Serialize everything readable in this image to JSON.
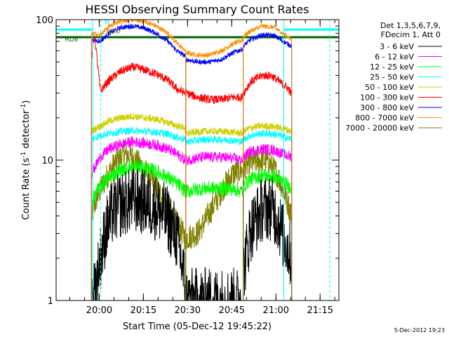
{
  "chart_data": {
    "type": "line",
    "title": "HESSI Observing Summary Count Rates",
    "xlabel": "Start Time (05-Dec-12 19:45:22)",
    "ylabel_main": "Count Rate (s",
    "ylabel_sup1": "-1",
    "ylabel_mid": " detector",
    "ylabel_sup2": "-1",
    "ylabel_end": ")",
    "x_unit": "minutes after 19:45:22",
    "xlim": [
      0,
      96
    ],
    "ylim": [
      1,
      100
    ],
    "yscale": "log",
    "xticks": [
      {
        "x": 14.63,
        "label": "20:00"
      },
      {
        "x": 29.63,
        "label": "20:15"
      },
      {
        "x": 44.63,
        "label": "20:30"
      },
      {
        "x": 59.63,
        "label": "20:45"
      },
      {
        "x": 74.63,
        "label": "21:00"
      },
      {
        "x": 89.63,
        "label": "21:15"
      }
    ],
    "yticks": [
      {
        "y": 1,
        "label": "1"
      },
      {
        "y": 10,
        "label": "10"
      },
      {
        "y": 100,
        "label": "100"
      }
    ],
    "legend_header": [
      "Det 1,3,5,6,7,9,",
      "FDecim 1, Att 0"
    ],
    "timestamp": "5-Dec-2012 19:23",
    "segments": [
      [
        12.0,
        44.0
      ],
      [
        44.0,
        63.5
      ],
      [
        63.5,
        80.0
      ]
    ],
    "data_range": [
      12.0,
      80.0
    ],
    "series": [
      {
        "name": "3 - 6 keV",
        "color": "#000000",
        "noise": 0.55,
        "points": [
          [
            12.0,
            1
          ],
          [
            13.5,
            1.3
          ],
          [
            15,
            2.0
          ],
          [
            17,
            3.2
          ],
          [
            19,
            4.2
          ],
          [
            22,
            4.8
          ],
          [
            26,
            5.2
          ],
          [
            30,
            5.0
          ],
          [
            34,
            4.6
          ],
          [
            38,
            3.8
          ],
          [
            41,
            2.8
          ],
          [
            43.9,
            1.3
          ],
          [
            44.1,
            1
          ],
          [
            50,
            1
          ],
          [
            56,
            1
          ],
          [
            60,
            1
          ],
          [
            63.4,
            1
          ],
          [
            63.6,
            1.6
          ],
          [
            66,
            3.2
          ],
          [
            70,
            4.5
          ],
          [
            73,
            4.6
          ],
          [
            75,
            4.0
          ],
          [
            77,
            2.9
          ],
          [
            80,
            2.0
          ]
        ]
      },
      {
        "name": "6 - 12 keV",
        "color": "#ff00ff",
        "noise": 0.09,
        "points": [
          [
            12.0,
            8.0
          ],
          [
            15,
            10.5
          ],
          [
            18,
            12.0
          ],
          [
            22,
            13.0
          ],
          [
            26,
            13.5
          ],
          [
            30,
            13.2
          ],
          [
            34,
            12.8
          ],
          [
            38,
            12.0
          ],
          [
            41,
            11.0
          ],
          [
            43.9,
            10.0
          ],
          [
            44.1,
            10.0
          ],
          [
            50,
            10.5
          ],
          [
            56,
            10.5
          ],
          [
            60,
            10.3
          ],
          [
            63.4,
            10.0
          ],
          [
            63.6,
            10.5
          ],
          [
            66,
            11.5
          ],
          [
            70,
            12.0
          ],
          [
            74,
            11.8
          ],
          [
            77,
            11.0
          ],
          [
            80,
            10.5
          ]
        ]
      },
      {
        "name": "12 - 25 keV",
        "color": "#00ff00",
        "noise": 0.12,
        "points": [
          [
            12.0,
            5.0
          ],
          [
            15,
            6.5
          ],
          [
            18,
            7.5
          ],
          [
            22,
            8.5
          ],
          [
            26,
            9.0
          ],
          [
            30,
            8.8
          ],
          [
            34,
            8.3
          ],
          [
            38,
            7.5
          ],
          [
            41,
            6.8
          ],
          [
            43.9,
            6.0
          ],
          [
            44.1,
            6.0
          ],
          [
            50,
            6.3
          ],
          [
            56,
            6.3
          ],
          [
            60,
            6.2
          ],
          [
            63.4,
            6.0
          ],
          [
            63.6,
            6.5
          ],
          [
            66,
            7.3
          ],
          [
            70,
            7.8
          ],
          [
            74,
            7.6
          ],
          [
            77,
            7.0
          ],
          [
            80,
            6.3
          ]
        ]
      },
      {
        "name": "25 - 50 keV",
        "color": "#00ffff",
        "noise": 0.06,
        "points": [
          [
            12.0,
            14.0
          ],
          [
            15,
            15.0
          ],
          [
            18,
            15.5
          ],
          [
            22,
            16.0
          ],
          [
            26,
            16.2
          ],
          [
            30,
            16.0
          ],
          [
            34,
            15.8
          ],
          [
            38,
            15.3
          ],
          [
            41,
            14.5
          ],
          [
            43.9,
            14.0
          ],
          [
            44.1,
            13.5
          ],
          [
            50,
            14.0
          ],
          [
            56,
            14.0
          ],
          [
            60,
            13.8
          ],
          [
            63.4,
            13.5
          ],
          [
            63.6,
            14.0
          ],
          [
            66,
            15.0
          ],
          [
            70,
            15.5
          ],
          [
            74,
            15.3
          ],
          [
            77,
            14.8
          ],
          [
            80,
            14.0
          ]
        ]
      },
      {
        "name": "50 - 100 keV",
        "color": "#d0d000",
        "noise": 0.06,
        "points": [
          [
            12.0,
            16.0
          ],
          [
            15,
            17.5
          ],
          [
            18,
            19.0
          ],
          [
            22,
            20.0
          ],
          [
            26,
            20.5
          ],
          [
            30,
            20.0
          ],
          [
            34,
            19.5
          ],
          [
            38,
            18.5
          ],
          [
            41,
            17.5
          ],
          [
            43.9,
            17.0
          ],
          [
            44.1,
            15.5
          ],
          [
            50,
            16.0
          ],
          [
            56,
            16.0
          ],
          [
            60,
            15.8
          ],
          [
            63.4,
            15.5
          ],
          [
            63.6,
            16.0
          ],
          [
            66,
            17.0
          ],
          [
            70,
            17.5
          ],
          [
            74,
            17.3
          ],
          [
            77,
            16.8
          ],
          [
            80,
            16.0
          ]
        ]
      },
      {
        "name": "100 - 300 keV",
        "color": "#ff0000",
        "noise": 0.07,
        "points": [
          [
            12.0,
            50
          ],
          [
            13,
            80
          ],
          [
            15,
            31
          ],
          [
            18,
            37
          ],
          [
            22,
            43
          ],
          [
            26,
            46
          ],
          [
            30,
            44
          ],
          [
            34,
            41
          ],
          [
            38,
            37
          ],
          [
            41,
            32
          ],
          [
            43.9,
            30
          ],
          [
            44.1,
            30
          ],
          [
            48,
            28
          ],
          [
            52,
            27
          ],
          [
            56,
            27
          ],
          [
            60,
            28
          ],
          [
            63.4,
            28
          ],
          [
            63.6,
            30
          ],
          [
            66,
            36
          ],
          [
            70,
            40
          ],
          [
            73,
            40
          ],
          [
            76,
            36
          ],
          [
            79,
            32
          ],
          [
            80,
            29
          ]
        ]
      },
      {
        "name": "300 - 800 keV",
        "color": "#0000ff",
        "noise": 0.04,
        "points": [
          [
            12.0,
            72
          ],
          [
            15,
            70
          ],
          [
            18,
            80
          ],
          [
            22,
            88
          ],
          [
            26,
            90
          ],
          [
            30,
            87
          ],
          [
            34,
            80
          ],
          [
            38,
            70
          ],
          [
            41,
            60
          ],
          [
            43.9,
            55
          ],
          [
            44.1,
            52
          ],
          [
            48,
            50
          ],
          [
            52,
            50
          ],
          [
            56,
            52
          ],
          [
            60,
            58
          ],
          [
            63.4,
            62
          ],
          [
            63.6,
            65
          ],
          [
            66,
            72
          ],
          [
            70,
            78
          ],
          [
            74,
            77
          ],
          [
            77,
            70
          ],
          [
            80,
            65
          ]
        ]
      },
      {
        "name": "800 - 7000 keV",
        "color": "#ff8c00",
        "noise": 0.04,
        "points": [
          [
            12.0,
            80
          ],
          [
            15,
            78
          ],
          [
            18,
            90
          ],
          [
            22,
            98
          ],
          [
            26,
            100
          ],
          [
            30,
            97
          ],
          [
            34,
            90
          ],
          [
            38,
            80
          ],
          [
            41,
            68
          ],
          [
            43.9,
            60
          ],
          [
            44.1,
            58
          ],
          [
            48,
            56
          ],
          [
            52,
            56
          ],
          [
            56,
            60
          ],
          [
            60,
            67
          ],
          [
            63.4,
            72
          ],
          [
            63.6,
            76
          ],
          [
            66,
            83
          ],
          [
            70,
            90
          ],
          [
            74,
            88
          ],
          [
            77,
            80
          ],
          [
            80,
            72
          ]
        ]
      },
      {
        "name": "7000 - 20000 keV",
        "color": "#808000",
        "noise": 0.22,
        "points": [
          [
            12.0,
            4.0
          ],
          [
            14,
            5.5
          ],
          [
            17,
            7.5
          ],
          [
            20,
            9.5
          ],
          [
            23,
            11.0
          ],
          [
            26,
            10.5
          ],
          [
            29,
            9.0
          ],
          [
            33,
            7.0
          ],
          [
            37,
            5.0
          ],
          [
            41,
            3.5
          ],
          [
            43.9,
            2.8
          ],
          [
            44.1,
            2.8
          ],
          [
            48,
            3.0
          ],
          [
            51,
            3.8
          ],
          [
            54,
            5.0
          ],
          [
            57,
            6.5
          ],
          [
            60,
            8.0
          ],
          [
            63.4,
            8.5
          ],
          [
            63.6,
            8.8
          ],
          [
            66,
            9.5
          ],
          [
            69,
            10.0
          ],
          [
            72,
            9.8
          ],
          [
            75,
            8.0
          ],
          [
            78,
            5.5
          ],
          [
            80,
            4.0
          ]
        ]
      }
    ],
    "overlay_bars": [
      {
        "color": "#00ffff",
        "y": 85,
        "x": [
          0,
          12.4
        ]
      },
      {
        "color": "#00ffff",
        "y": 85,
        "x": [
          77.3,
          96
        ]
      },
      {
        "color": "#006400",
        "y": 75,
        "x": [
          0,
          96
        ]
      }
    ],
    "flags": [
      {
        "label": "RD8",
        "color": "#006400",
        "x": 3.0,
        "y": 70
      },
      {
        "label": "RDD",
        "color": "#808000",
        "x": 17.0,
        "y": 80
      },
      {
        "label": "N",
        "color": "#00ffff",
        "x": 16.5,
        "y": 93
      }
    ],
    "verticals": [
      {
        "x": 12.4,
        "color": "#00ffff",
        "dash": false
      },
      {
        "x": 77.3,
        "color": "#00ffff",
        "dash": false
      },
      {
        "x": 92.9,
        "color": "#00ffff",
        "dash": true
      },
      {
        "x": 15.1,
        "color": "#00ffff",
        "dash": true
      }
    ]
  }
}
